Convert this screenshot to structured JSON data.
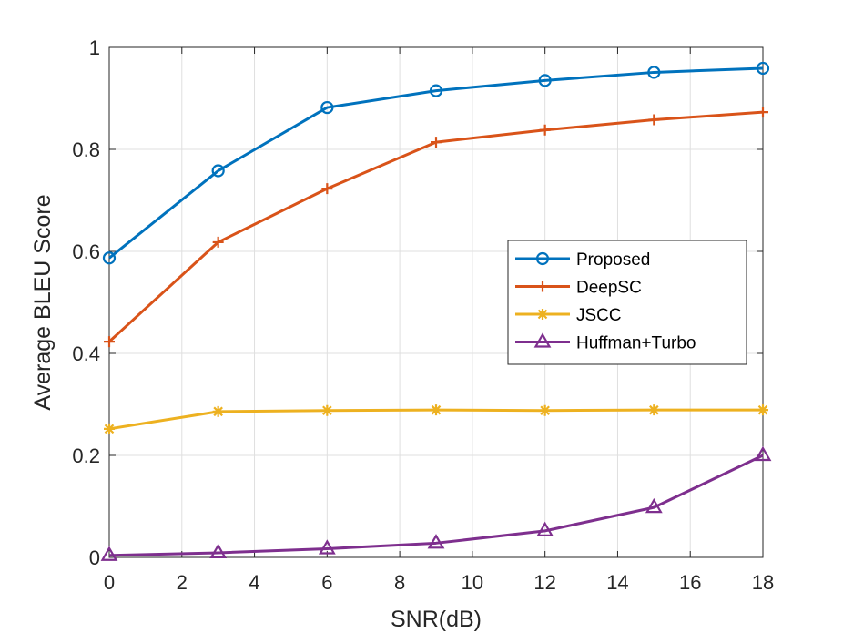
{
  "chart_data": {
    "type": "line",
    "title": "",
    "xlabel": "SNR(dB)",
    "ylabel": "Average BLEU Score",
    "xlim": [
      0,
      18
    ],
    "ylim": [
      0,
      1
    ],
    "grid": true,
    "legend_position": "center-right",
    "x_ticks": [
      0,
      2,
      4,
      6,
      8,
      10,
      12,
      14,
      16,
      18
    ],
    "y_ticks": [
      0,
      0.2,
      0.4,
      0.6,
      0.8,
      1
    ],
    "x_tick_labels": [
      "0",
      "2",
      "4",
      "6",
      "8",
      "10",
      "12",
      "14",
      "16",
      "18"
    ],
    "y_tick_labels": [
      "0",
      "0.2",
      "0.4",
      "0.6",
      "0.8",
      "1"
    ],
    "x": [
      0,
      3,
      6,
      9,
      12,
      15,
      18
    ],
    "series": [
      {
        "name": "Proposed",
        "color": "#0072BD",
        "marker": "circle",
        "values": [
          0.587,
          0.758,
          0.882,
          0.915,
          0.935,
          0.951,
          0.959
        ]
      },
      {
        "name": "DeepSC",
        "color": "#D95319",
        "marker": "plus",
        "values": [
          0.423,
          0.618,
          0.723,
          0.814,
          0.838,
          0.858,
          0.873
        ]
      },
      {
        "name": "JSCC",
        "color": "#EDB120",
        "marker": "asterisk",
        "values": [
          0.252,
          0.286,
          0.288,
          0.289,
          0.288,
          0.289,
          0.289
        ]
      },
      {
        "name": "Huffman+Turbo",
        "color": "#7E2F8E",
        "marker": "triangle",
        "values": [
          0.004,
          0.009,
          0.017,
          0.028,
          0.052,
          0.098,
          0.2
        ]
      }
    ]
  }
}
